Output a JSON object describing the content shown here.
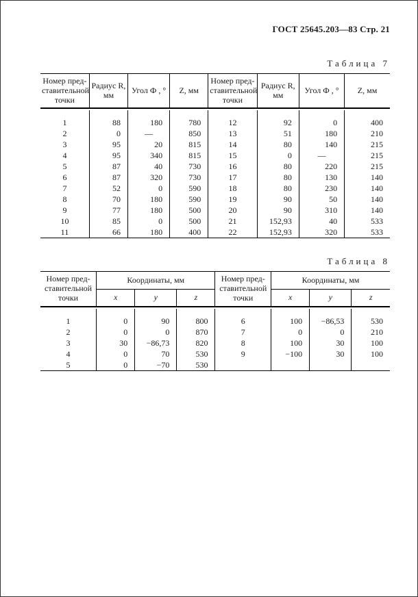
{
  "doc": {
    "header": "ГОСТ 25645.203—83 Стр. 21",
    "t7_caption": "Таблица  7",
    "t8_caption": "Таблица  8"
  },
  "t7": {
    "h_num": "Номер пред-\nставительной\nточки",
    "h_r": "Радиус R,\nмм",
    "h_phi": "Угол Ф , °",
    "h_z": "Z, мм",
    "left": [
      {
        "n": "1",
        "r": "88",
        "phi": "180",
        "z": "780"
      },
      {
        "n": "2",
        "r": "0",
        "phi": "—",
        "z": "850"
      },
      {
        "n": "3",
        "r": "95",
        "phi": "20",
        "z": "815"
      },
      {
        "n": "4",
        "r": "95",
        "phi": "340",
        "z": "815"
      },
      {
        "n": "5",
        "r": "87",
        "phi": "40",
        "z": "730"
      },
      {
        "n": "6",
        "r": "87",
        "phi": "320",
        "z": "730"
      },
      {
        "n": "7",
        "r": "52",
        "phi": "0",
        "z": "590"
      },
      {
        "n": "8",
        "r": "70",
        "phi": "180",
        "z": "590"
      },
      {
        "n": "9",
        "r": "77",
        "phi": "180",
        "z": "500"
      },
      {
        "n": "10",
        "r": "85",
        "phi": "0",
        "z": "500"
      },
      {
        "n": "11",
        "r": "66",
        "phi": "180",
        "z": "400"
      }
    ],
    "right": [
      {
        "n": "12",
        "r": "92",
        "phi": "0",
        "z": "400"
      },
      {
        "n": "13",
        "r": "51",
        "phi": "180",
        "z": "210"
      },
      {
        "n": "14",
        "r": "80",
        "phi": "140",
        "z": "215"
      },
      {
        "n": "15",
        "r": "0",
        "phi": "—",
        "z": "215"
      },
      {
        "n": "16",
        "r": "80",
        "phi": "220",
        "z": "215"
      },
      {
        "n": "17",
        "r": "80",
        "phi": "130",
        "z": "140"
      },
      {
        "n": "18",
        "r": "80",
        "phi": "230",
        "z": "140"
      },
      {
        "n": "19",
        "r": "90",
        "phi": "50",
        "z": "140"
      },
      {
        "n": "20",
        "r": "90",
        "phi": "310",
        "z": "140"
      },
      {
        "n": "21",
        "r": "152,93",
        "phi": "40",
        "z": "533"
      },
      {
        "n": "22",
        "r": "152,93",
        "phi": "320",
        "z": "533"
      }
    ]
  },
  "t8": {
    "h_num": "Номер пред-\nставительной\nточки",
    "h_coords": "Координаты, мм",
    "h_x": "x",
    "h_y": "y",
    "h_z": "z",
    "left": [
      {
        "n": "1",
        "x": "0",
        "y": "90",
        "z": "800"
      },
      {
        "n": "2",
        "x": "0",
        "y": "0",
        "z": "870"
      },
      {
        "n": "3",
        "x": "30",
        "y": "−86,73",
        "z": "820"
      },
      {
        "n": "4",
        "x": "0",
        "y": "70",
        "z": "530"
      },
      {
        "n": "5",
        "x": "0",
        "y": "−70",
        "z": "530"
      }
    ],
    "right": [
      {
        "n": "6",
        "x": "100",
        "y": "−86,53",
        "z": "530"
      },
      {
        "n": "7",
        "x": "0",
        "y": "0",
        "z": "210"
      },
      {
        "n": "8",
        "x": "100",
        "y": "30",
        "z": "100"
      },
      {
        "n": "9",
        "x": "−100",
        "y": "30",
        "z": "100"
      }
    ]
  }
}
